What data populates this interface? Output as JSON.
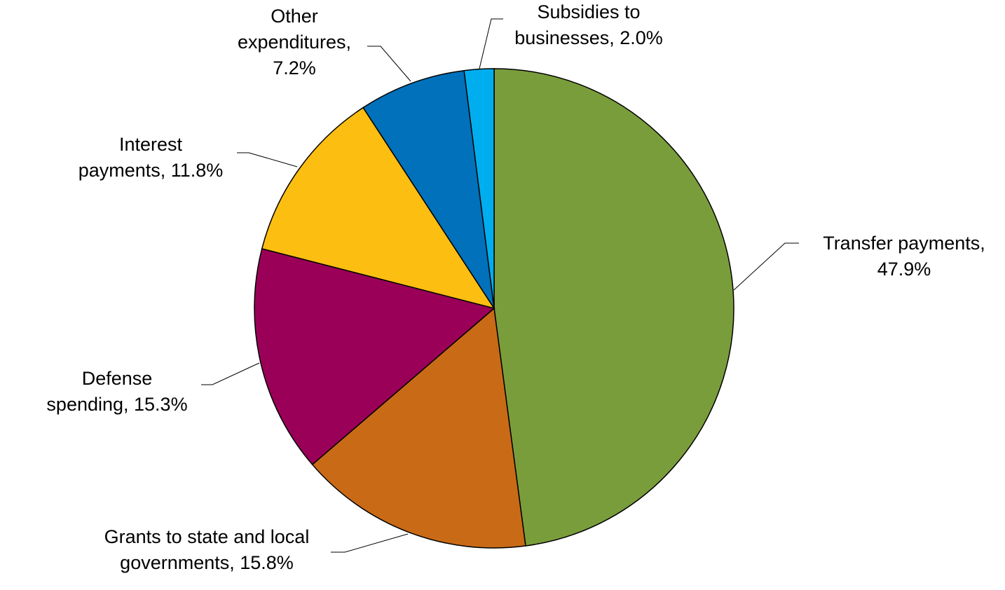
{
  "chart_data": {
    "type": "pie",
    "start_angle_deg": 0,
    "direction": "clockwise",
    "slices": [
      {
        "label_lines": [
          "Transfer payments,",
          "47.9%"
        ],
        "value": 47.9,
        "color": "#7A9D3C"
      },
      {
        "label_lines": [
          "Grants to state and local",
          "governments, 15.8%"
        ],
        "value": 15.8,
        "color": "#C96A17"
      },
      {
        "label_lines": [
          "Defense",
          "spending, 15.3%"
        ],
        "value": 15.3,
        "color": "#9B0058"
      },
      {
        "label_lines": [
          "Interest",
          "payments, 11.8%"
        ],
        "value": 11.8,
        "color": "#FCBE11"
      },
      {
        "label_lines": [
          "Other",
          "expenditures,",
          "7.2%"
        ],
        "value": 7.2,
        "color": "#0071BA"
      },
      {
        "label_lines": [
          "Subsidies to",
          "businesses, 2.0%"
        ],
        "value": 2.0,
        "color": "#00AEEF"
      }
    ]
  }
}
